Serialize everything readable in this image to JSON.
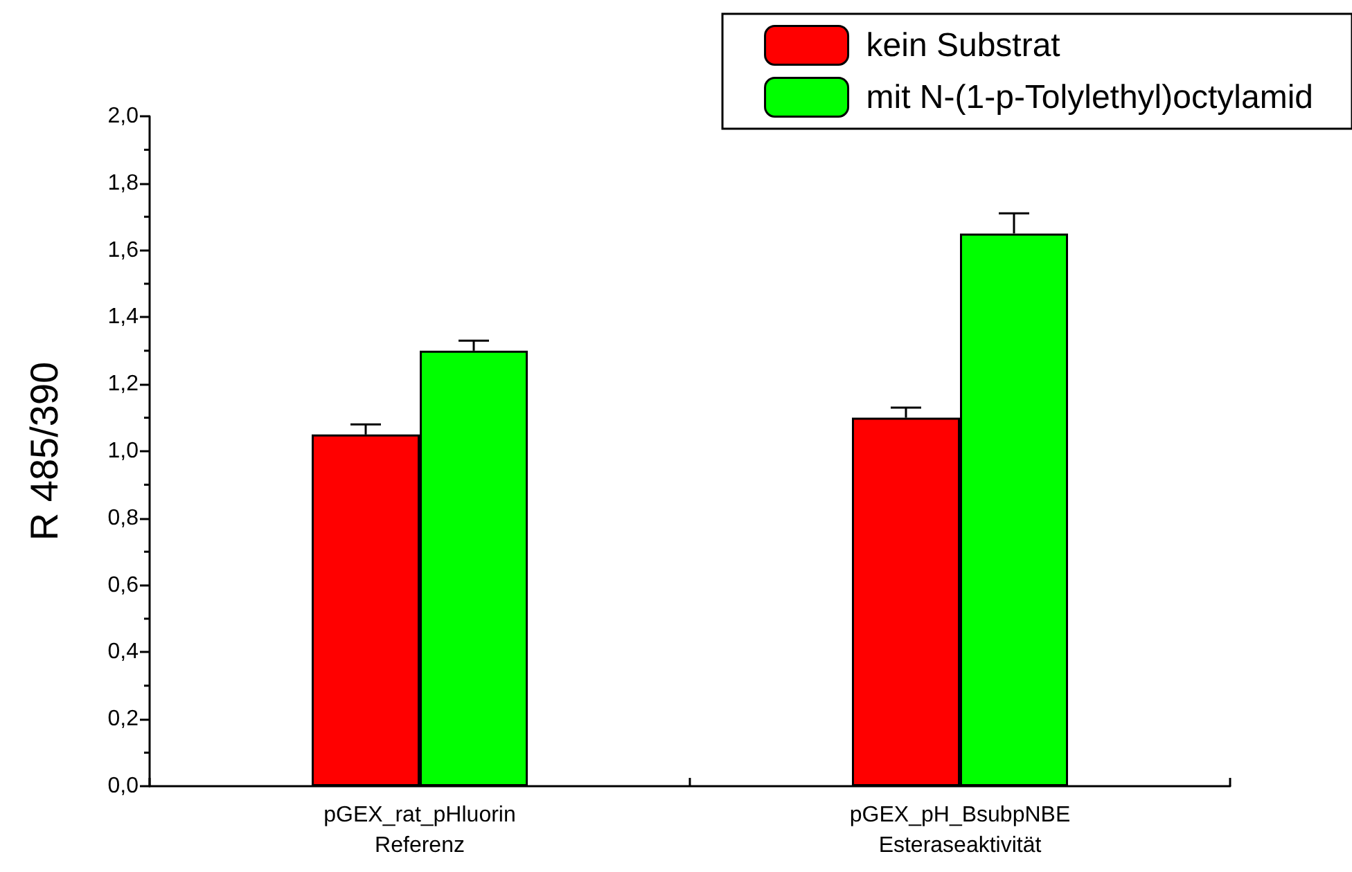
{
  "chart_data": {
    "type": "bar",
    "ylabel": "R 485/390",
    "categories": [
      "pGEX_rat_pHluorin\nReferenz",
      "pGEX_pH_BsubpNBE\nEsteraseaktivität"
    ],
    "series": [
      {
        "name": "kein Substrat",
        "color": "#ff0000",
        "values": [
          1.05,
          1.1
        ],
        "errors": [
          [
            1.05,
            1.08
          ],
          [
            1.1,
            1.13
          ]
        ]
      },
      {
        "name": "mit N-(1-p-Tolylethyl)octylamid",
        "color": "#00ff00",
        "values": [
          1.3,
          1.65
        ],
        "errors": [
          [
            1.3,
            1.33
          ],
          [
            1.65,
            1.71
          ]
        ]
      }
    ],
    "ylim": [
      0,
      2
    ],
    "yticks": [
      {
        "value": 0,
        "label": "0,0"
      },
      {
        "value": 0.2,
        "label": "0,2"
      },
      {
        "value": 0.4,
        "label": "0,4"
      },
      {
        "value": 0.6,
        "label": "0,6"
      },
      {
        "value": 0.8,
        "label": "0,8"
      },
      {
        "value": 1,
        "label": "1,0"
      },
      {
        "value": 1.2,
        "label": "1,2"
      },
      {
        "value": 1.4,
        "label": "1,4"
      },
      {
        "value": 1.6,
        "label": "1,6"
      },
      {
        "value": 1.8,
        "label": "1,8"
      },
      {
        "value": 2,
        "label": "2,0"
      }
    ],
    "grid": false,
    "legend": "top right"
  }
}
